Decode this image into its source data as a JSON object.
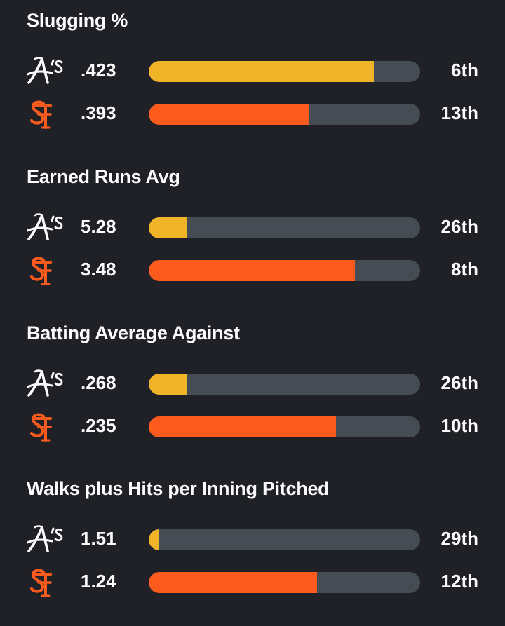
{
  "team_colors": {
    "athletics": "#f0b429",
    "giants": "#fd5a1e",
    "track": "#464c54"
  },
  "teams": {
    "athletics": {
      "logo_icon": "athletics-logo-icon",
      "logo_text": "A's"
    },
    "giants": {
      "logo_icon": "giants-logo-icon",
      "logo_text": "SF"
    }
  },
  "stats": [
    {
      "title": "Slugging %",
      "rows": [
        {
          "team": "athletics",
          "value": ".423",
          "bar_fraction": 0.83,
          "rank": "6th"
        },
        {
          "team": "giants",
          "value": ".393",
          "bar_fraction": 0.59,
          "rank": "13th"
        }
      ]
    },
    {
      "title": "Earned Runs Avg",
      "rows": [
        {
          "team": "athletics",
          "value": "5.28",
          "bar_fraction": 0.14,
          "rank": "26th"
        },
        {
          "team": "giants",
          "value": "3.48",
          "bar_fraction": 0.76,
          "rank": "8th"
        }
      ]
    },
    {
      "title": "Batting Average Against",
      "rows": [
        {
          "team": "athletics",
          "value": ".268",
          "bar_fraction": 0.14,
          "rank": "26th"
        },
        {
          "team": "giants",
          "value": ".235",
          "bar_fraction": 0.69,
          "rank": "10th"
        }
      ]
    },
    {
      "title": "Walks plus Hits per Inning Pitched",
      "rows": [
        {
          "team": "athletics",
          "value": "1.51",
          "bar_fraction": 0.04,
          "rank": "29th"
        },
        {
          "team": "giants",
          "value": "1.24",
          "bar_fraction": 0.62,
          "rank": "12th"
        }
      ]
    }
  ]
}
